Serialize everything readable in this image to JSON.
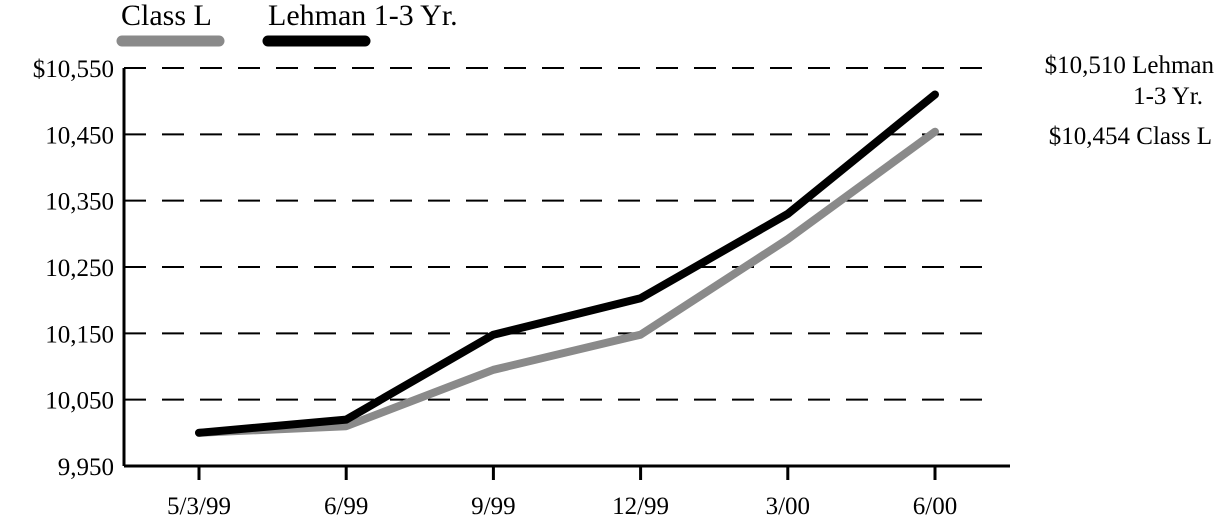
{
  "chart_data": {
    "type": "line",
    "categories": [
      "5/3/99",
      "6/99",
      "9/99",
      "12/99",
      "3/00",
      "6/00"
    ],
    "series": [
      {
        "name": "Class L",
        "values": [
          10000,
          10010,
          10095,
          10148,
          10292,
          10454
        ],
        "color": "#8a8a8a"
      },
      {
        "name": "Lehman 1-3 Yr.",
        "values": [
          10000,
          10020,
          10148,
          10203,
          10330,
          10510
        ],
        "color": "#000000"
      }
    ],
    "y_tick_labels": [
      "$10,550",
      "10,450",
      "10,350",
      "10,250",
      "10,150",
      "10,050",
      "9,950"
    ],
    "y_tick_values": [
      10550,
      10450,
      10350,
      10250,
      10150,
      10050,
      9950
    ],
    "ylim": [
      9950,
      10550
    ],
    "grid": true,
    "grid_style": "dashed",
    "legend_position": "top-left",
    "end_labels": [
      {
        "series": "Lehman 1-3 Yr.",
        "value": 10510,
        "lines": [
          "$10,510 Lehman",
          "1-3 Yr."
        ]
      },
      {
        "series": "Class L",
        "value": 10454,
        "lines": [
          "$10,454 Class L"
        ]
      }
    ],
    "title": "",
    "xlabel": "",
    "ylabel": ""
  }
}
